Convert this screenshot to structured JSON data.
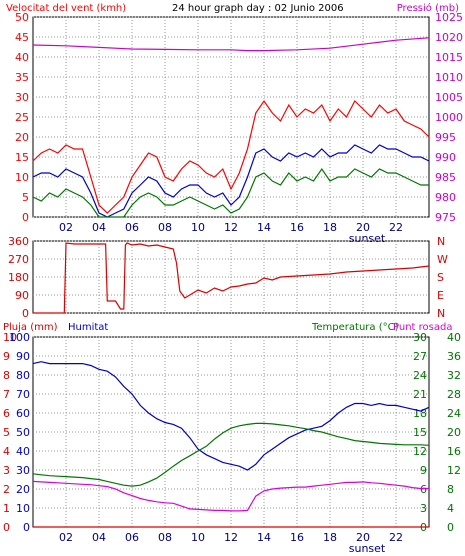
{
  "header": {
    "left_label": "Velocitat del vent (kmh)",
    "title": "24 hour graph day : 02 Junio 2006",
    "right_label": "Pressió (mb)"
  },
  "colors": {
    "frame": "#000000",
    "background": "#ffffff",
    "grid": "#9a9a9a",
    "wind": "#ff0000",
    "wind_avg": "#0000cc",
    "wind_min": "#007700",
    "pressure": "#cc00cc",
    "direction": "#dd0000",
    "rain": "#dd0000",
    "humidity": "#0000cc",
    "temperature": "#007700",
    "dewpoint": "#dd00dd"
  },
  "x_ticks": [
    "02",
    "04",
    "06",
    "08",
    "10",
    "12",
    "14",
    "16",
    "18",
    "20",
    "22"
  ],
  "sunset_label": "sunset",
  "chart_data": [
    {
      "type": "line",
      "id": "wind_pressure",
      "title": "24 hour graph day : 02 Junio 2006",
      "ylabel": "Velocitat del vent (kmh)",
      "ylabel_right": "Pressió (mb)",
      "ylim": [
        0,
        50
      ],
      "ylim_right": [
        975,
        1025
      ],
      "y_ticks": [
        0,
        5,
        10,
        15,
        20,
        25,
        30,
        35,
        40,
        45,
        50
      ],
      "y_ticks_right": [
        975,
        980,
        985,
        990,
        995,
        1000,
        1005,
        1010,
        1015,
        1020,
        1025
      ],
      "xlim": [
        0,
        24
      ],
      "grid": true,
      "series": [
        {
          "role": "wind_gust",
          "axis": "left",
          "x": [
            0,
            0.5,
            1,
            1.5,
            2,
            2.5,
            3,
            3.5,
            4,
            4.5,
            5,
            5.5,
            6,
            6.5,
            7,
            7.5,
            8,
            8.5,
            9,
            9.5,
            10,
            10.5,
            11,
            11.5,
            12,
            12.5,
            13,
            13.5,
            14,
            14.5,
            15,
            15.5,
            16,
            16.5,
            17,
            17.5,
            18,
            18.5,
            19,
            19.5,
            20,
            20.5,
            21,
            21.5,
            22,
            22.5,
            23,
            23.5,
            24
          ],
          "y": [
            14,
            16,
            17,
            16,
            18,
            17,
            17,
            10,
            3,
            1,
            3,
            5,
            10,
            13,
            16,
            15,
            10,
            9,
            12,
            14,
            13,
            11,
            10,
            12,
            7,
            11,
            17,
            26,
            29,
            26,
            24,
            28,
            25,
            27,
            26,
            28,
            24,
            27,
            25,
            29,
            27,
            25,
            28,
            26,
            27,
            24,
            23,
            22,
            20
          ]
        },
        {
          "role": "wind_average",
          "axis": "left",
          "x": [
            0,
            0.5,
            1,
            1.5,
            2,
            2.5,
            3,
            3.5,
            4,
            4.5,
            5,
            5.5,
            6,
            6.5,
            7,
            7.5,
            8,
            8.5,
            9,
            9.5,
            10,
            10.5,
            11,
            11.5,
            12,
            12.5,
            13,
            13.5,
            14,
            14.5,
            15,
            15.5,
            16,
            16.5,
            17,
            17.5,
            18,
            18.5,
            19,
            19.5,
            20,
            20.5,
            21,
            21.5,
            22,
            22.5,
            23,
            23.5,
            24
          ],
          "y": [
            10,
            11,
            11,
            10,
            12,
            11,
            10,
            6,
            1,
            0,
            1,
            2,
            6,
            8,
            10,
            9,
            6,
            5,
            7,
            8,
            8,
            6,
            5,
            6,
            3,
            5,
            10,
            16,
            17,
            15,
            14,
            16,
            15,
            16,
            15,
            17,
            15,
            16,
            16,
            18,
            17,
            16,
            18,
            17,
            17,
            16,
            15,
            15,
            14
          ]
        },
        {
          "role": "wind_minimum",
          "axis": "left",
          "x": [
            0,
            0.5,
            1,
            1.5,
            2,
            2.5,
            3,
            3.5,
            4,
            4.5,
            5,
            5.5,
            6,
            6.5,
            7,
            7.5,
            8,
            8.5,
            9,
            9.5,
            10,
            10.5,
            11,
            11.5,
            12,
            12.5,
            13,
            13.5,
            14,
            14.5,
            15,
            15.5,
            16,
            16.5,
            17,
            17.5,
            18,
            18.5,
            19,
            19.5,
            20,
            20.5,
            21,
            21.5,
            22,
            22.5,
            23,
            23.5,
            24
          ],
          "y": [
            5,
            4,
            6,
            5,
            7,
            6,
            5,
            3,
            0,
            0,
            0,
            0,
            3,
            5,
            6,
            5,
            3,
            3,
            4,
            5,
            4,
            3,
            2,
            3,
            1,
            2,
            5,
            10,
            11,
            9,
            8,
            11,
            9,
            10,
            9,
            12,
            9,
            10,
            10,
            12,
            11,
            10,
            12,
            11,
            11,
            10,
            9,
            8,
            8
          ]
        },
        {
          "role": "pressure",
          "axis": "right",
          "x": [
            0,
            2,
            4,
            6,
            8,
            10,
            12,
            13,
            14,
            16,
            18,
            20,
            22,
            24
          ],
          "y": [
            1018,
            1017.8,
            1017.4,
            1017,
            1016.9,
            1016.8,
            1016.8,
            1016.6,
            1016.6,
            1016.8,
            1017.2,
            1018.2,
            1019.2,
            1019.8
          ]
        }
      ]
    },
    {
      "type": "line",
      "id": "wind_direction",
      "ylim": [
        0,
        360
      ],
      "y_ticks": [
        0,
        90,
        180,
        270,
        360
      ],
      "right_labels": [
        "N",
        "W",
        "S",
        "E",
        "N"
      ],
      "xlim": [
        0,
        24
      ],
      "grid": true,
      "series": [
        {
          "role": "direction",
          "axis": "left",
          "x": [
            0,
            1.9,
            2,
            2.5,
            3,
            3.5,
            4,
            4.4,
            4.5,
            5,
            5.3,
            5.5,
            5.6,
            5.7,
            6,
            6.5,
            7,
            7.5,
            8,
            8.5,
            8.7,
            8.9,
            9.2,
            9.5,
            10,
            10.5,
            11,
            11.5,
            12,
            12.5,
            13,
            13.5,
            14,
            14.5,
            15,
            16,
            17,
            18,
            19,
            20,
            21,
            22,
            23,
            23.5,
            24
          ],
          "y": [
            0,
            0,
            350,
            345,
            345,
            345,
            345,
            345,
            60,
            60,
            20,
            20,
            340,
            350,
            340,
            345,
            335,
            340,
            330,
            320,
            250,
            110,
            75,
            90,
            115,
            100,
            125,
            110,
            130,
            135,
            145,
            150,
            175,
            165,
            180,
            185,
            190,
            195,
            205,
            210,
            215,
            220,
            225,
            230,
            235
          ]
        }
      ]
    },
    {
      "type": "line",
      "id": "rain_humidity_temperature",
      "ylabel": "Pluja (mm)",
      "ylabel2": "Humitat",
      "ylabel_right": "Temperatura (°C)",
      "ylabel_right2": "Punt rosada",
      "ylim_rain": [
        0,
        10
      ],
      "y_ticks_rain": [
        0,
        1,
        2,
        3,
        4,
        5,
        6,
        7,
        8,
        9,
        10
      ],
      "ylim_humidity": [
        0,
        100
      ],
      "y_ticks_humidity": [
        0,
        10,
        20,
        30,
        40,
        50,
        60,
        70,
        80,
        90,
        100
      ],
      "ylim_temp_inner": [
        0,
        30
      ],
      "y_ticks_temp_inner": [
        0,
        3,
        6,
        9,
        12,
        15,
        18,
        21,
        24,
        27,
        30
      ],
      "ylim_temp_right": [
        0,
        40
      ],
      "y_ticks_temp_right": [
        0,
        4,
        8,
        12,
        16,
        20,
        24,
        28,
        32,
        36,
        40
      ],
      "xlim": [
        0,
        24
      ],
      "grid": true,
      "series": [
        {
          "role": "rain",
          "axis": "rain",
          "x": [
            0,
            24
          ],
          "y": [
            0,
            0
          ]
        },
        {
          "role": "humidity",
          "axis": "humidity",
          "x": [
            0,
            0.5,
            1,
            1.5,
            2,
            2.5,
            3,
            3.5,
            4,
            4.5,
            5,
            5.5,
            6,
            6.5,
            7,
            7.5,
            8,
            8.5,
            9,
            9.5,
            10,
            10.5,
            11,
            11.5,
            12,
            12.5,
            13,
            13.5,
            14,
            14.5,
            15,
            15.5,
            16,
            16.5,
            17,
            17.5,
            18,
            18.5,
            19,
            19.5,
            20,
            20.5,
            21,
            21.5,
            22,
            22.5,
            23,
            23.5,
            24
          ],
          "y": [
            86,
            87,
            86,
            86,
            86,
            86,
            86,
            85,
            83,
            82,
            79,
            74,
            70,
            64,
            60,
            57,
            55,
            54,
            52,
            47,
            41,
            38,
            36,
            34,
            33,
            32,
            30,
            33,
            38,
            41,
            44,
            47,
            49,
            51,
            52,
            53,
            56,
            60,
            63,
            65,
            65,
            64,
            65,
            64,
            64,
            63,
            62,
            61,
            63
          ]
        },
        {
          "role": "temperature",
          "axis": "temp_right",
          "x": [
            0,
            0.5,
            1,
            1.5,
            2,
            2.5,
            3,
            3.5,
            4,
            4.5,
            5,
            5.5,
            6,
            6.5,
            7,
            7.5,
            8,
            8.5,
            9,
            9.5,
            10,
            10.5,
            11,
            11.5,
            12,
            12.5,
            13,
            13.5,
            14,
            14.5,
            15,
            15.5,
            16,
            16.5,
            17,
            17.5,
            18,
            18.5,
            19,
            19.5,
            20,
            20.5,
            21,
            21.5,
            22,
            22.5,
            23,
            23.5,
            24
          ],
          "y": [
            11.2,
            11.0,
            10.8,
            10.7,
            10.6,
            10.5,
            10.4,
            10.2,
            10.0,
            9.6,
            9.2,
            8.8,
            8.6,
            8.8,
            9.5,
            10.3,
            11.5,
            12.8,
            14.0,
            15.0,
            16.0,
            17.0,
            18.5,
            19.8,
            20.8,
            21.3,
            21.6,
            21.8,
            21.8,
            21.7,
            21.5,
            21.3,
            21.0,
            20.7,
            20.3,
            20.0,
            19.5,
            19.0,
            18.6,
            18.2,
            18.0,
            17.8,
            17.6,
            17.5,
            17.4,
            17.3,
            17.3,
            17.3,
            17.2
          ]
        },
        {
          "role": "dew_point",
          "axis": "temp_right",
          "x": [
            0,
            0.5,
            1,
            1.5,
            2,
            2.5,
            3,
            3.5,
            4,
            4.5,
            5,
            5.5,
            6,
            6.5,
            7,
            7.5,
            8,
            8.5,
            9,
            9.5,
            10,
            10.5,
            11,
            11.5,
            12,
            12.5,
            13,
            13.5,
            14,
            14.5,
            15,
            15.5,
            16,
            16.5,
            17,
            17.5,
            18,
            18.5,
            19,
            19.5,
            20,
            20.5,
            21,
            21.5,
            22,
            22.5,
            23,
            23.5,
            24
          ],
          "y": [
            9.6,
            9.5,
            9.4,
            9.3,
            9.2,
            9.1,
            9.0,
            8.9,
            8.7,
            8.5,
            8.0,
            7.2,
            6.6,
            6.0,
            5.6,
            5.3,
            5.1,
            5.0,
            4.4,
            3.8,
            3.7,
            3.6,
            3.5,
            3.5,
            3.4,
            3.4,
            3.5,
            6.5,
            7.6,
            8.0,
            8.2,
            8.3,
            8.4,
            8.4,
            8.6,
            8.8,
            9.0,
            9.2,
            9.4,
            9.4,
            9.5,
            9.3,
            9.2,
            9.0,
            8.8,
            8.6,
            8.3,
            8.1,
            8.1
          ]
        }
      ]
    }
  ]
}
